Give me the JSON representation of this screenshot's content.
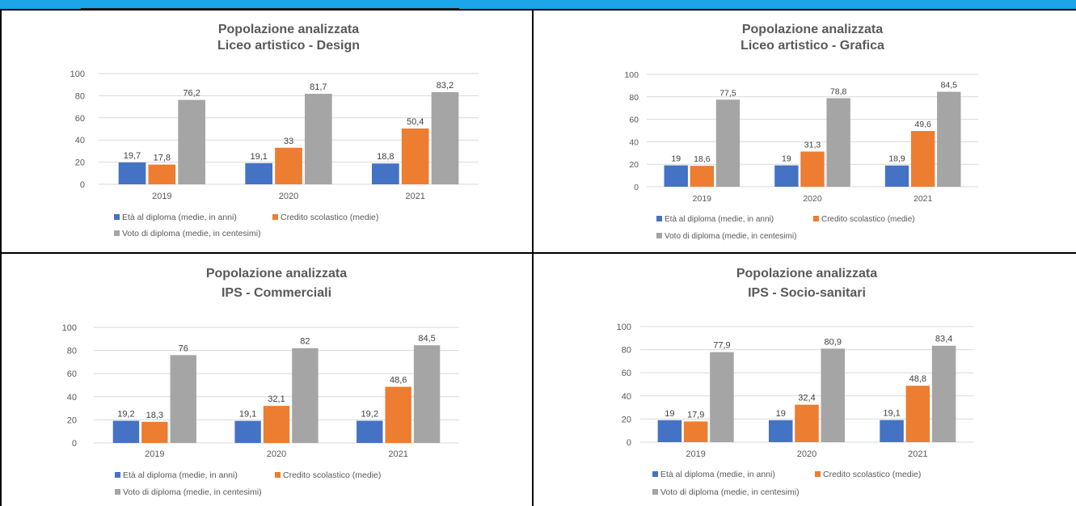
{
  "colors": {
    "series": [
      "#4472c4",
      "#ed7d31",
      "#a5a5a5"
    ],
    "top_band": "#1aa6e8"
  },
  "charts": [
    {
      "title": "Popolazione analizzata",
      "subtitle": "Liceo artistico - Design",
      "categories": [
        "2019",
        "2020",
        "2021"
      ],
      "series": [
        {
          "name": "Età al diploma (medie, in anni)",
          "values": [
            19.7,
            19.1,
            18.8
          ],
          "labels": [
            "19,7",
            "19,1",
            "18,8"
          ]
        },
        {
          "name": "Credito scolastico (medie)",
          "values": [
            17.8,
            33,
            50.4
          ],
          "labels": [
            "17,8",
            "33",
            "50,4"
          ]
        },
        {
          "name": "Voto di diploma (medie, in centesimi)",
          "values": [
            76.2,
            81.7,
            83.2
          ],
          "labels": [
            "76,2",
            "81,7",
            "83,2"
          ]
        }
      ],
      "yticks": [
        "0",
        "20",
        "40",
        "60",
        "80",
        "100"
      ]
    },
    {
      "title": "Popolazione analizzata",
      "subtitle": "Liceo artistico - Grafica",
      "categories": [
        "2019",
        "2020",
        "2021"
      ],
      "series": [
        {
          "name": "Età al diploma (medie, in anni)",
          "values": [
            19,
            19,
            18.9
          ],
          "labels": [
            "19",
            "19",
            "18,9"
          ]
        },
        {
          "name": "Credito scolastico (medie)",
          "values": [
            18.6,
            31.3,
            49.6
          ],
          "labels": [
            "18,6",
            "31,3",
            "49,6"
          ]
        },
        {
          "name": "Voto di diploma (medie, in centesimi)",
          "values": [
            77.5,
            78.8,
            84.5
          ],
          "labels": [
            "77,5",
            "78,8",
            "84,5"
          ]
        }
      ],
      "yticks": [
        "0",
        "20",
        "40",
        "60",
        "80",
        "100"
      ]
    },
    {
      "title": "Popolazione analizzata",
      "subtitle": "IPS - Commerciali",
      "categories": [
        "2019",
        "2020",
        "2021"
      ],
      "series": [
        {
          "name": "Età al diploma (medie, in anni)",
          "values": [
            19.2,
            19.1,
            19.2
          ],
          "labels": [
            "19,2",
            "19,1",
            "19,2"
          ]
        },
        {
          "name": "Credito scolastico (medie)",
          "values": [
            18.3,
            32.1,
            48.6
          ],
          "labels": [
            "18,3",
            "32,1",
            "48,6"
          ]
        },
        {
          "name": "Voto di diploma (medie, in centesimi)",
          "values": [
            76,
            82,
            84.5
          ],
          "labels": [
            "76",
            "82",
            "84,5"
          ]
        }
      ],
      "yticks": [
        "0",
        "20",
        "40",
        "60",
        "80",
        "100"
      ]
    },
    {
      "title": "Popolazione analizzata",
      "subtitle": "IPS - Socio-sanitari",
      "categories": [
        "2019",
        "2020",
        "2021"
      ],
      "series": [
        {
          "name": "Età al diploma (medie, in anni)",
          "values": [
            19,
            19,
            19.1
          ],
          "labels": [
            "19",
            "19",
            "19,1"
          ]
        },
        {
          "name": "Credito scolastico (medie)",
          "values": [
            17.9,
            32.4,
            48.8
          ],
          "labels": [
            "17,9",
            "32,4",
            "48,8"
          ]
        },
        {
          "name": "Voto di diploma (medie, in centesimi)",
          "values": [
            77.9,
            80.9,
            83.4
          ],
          "labels": [
            "77,9",
            "80,9",
            "83,4"
          ]
        }
      ],
      "yticks": [
        "0",
        "20",
        "40",
        "60",
        "80",
        "100"
      ]
    }
  ],
  "chart_data": [
    {
      "type": "bar",
      "title": "Popolazione analizzata",
      "subtitle": "Liceo artistico - Design",
      "categories": [
        "2019",
        "2020",
        "2021"
      ],
      "series": [
        {
          "name": "Età al diploma (medie, in anni)",
          "values": [
            19.7,
            19.1,
            18.8
          ]
        },
        {
          "name": "Credito scolastico (medie)",
          "values": [
            17.8,
            33,
            50.4
          ]
        },
        {
          "name": "Voto di diploma (medie, in centesimi)",
          "values": [
            76.2,
            81.7,
            83.2
          ]
        }
      ],
      "ylim": [
        0,
        100
      ],
      "grid": true,
      "legend": "bottom"
    },
    {
      "type": "bar",
      "title": "Popolazione analizzata",
      "subtitle": "Liceo artistico - Grafica",
      "categories": [
        "2019",
        "2020",
        "2021"
      ],
      "series": [
        {
          "name": "Età al diploma (medie, in anni)",
          "values": [
            19,
            19,
            18.9
          ]
        },
        {
          "name": "Credito scolastico (medie)",
          "values": [
            18.6,
            31.3,
            49.6
          ]
        },
        {
          "name": "Voto di diploma (medie, in centesimi)",
          "values": [
            77.5,
            78.8,
            84.5
          ]
        }
      ],
      "ylim": [
        0,
        100
      ],
      "grid": true,
      "legend": "bottom"
    },
    {
      "type": "bar",
      "title": "Popolazione analizzata",
      "subtitle": "IPS - Commerciali",
      "categories": [
        "2019",
        "2020",
        "2021"
      ],
      "series": [
        {
          "name": "Età al diploma (medie, in anni)",
          "values": [
            19.2,
            19.1,
            19.2
          ]
        },
        {
          "name": "Credito scolastico (medie)",
          "values": [
            18.3,
            32.1,
            48.6
          ]
        },
        {
          "name": "Voto di diploma (medie, in centesimi)",
          "values": [
            76,
            82,
            84.5
          ]
        }
      ],
      "ylim": [
        0,
        100
      ],
      "grid": true,
      "legend": "bottom"
    },
    {
      "type": "bar",
      "title": "Popolazione analizzata",
      "subtitle": "IPS - Socio-sanitari",
      "categories": [
        "2019",
        "2020",
        "2021"
      ],
      "series": [
        {
          "name": "Età al diploma (medie, in anni)",
          "values": [
            19,
            19,
            19.1
          ]
        },
        {
          "name": "Credito scolastico (medie)",
          "values": [
            17.9,
            32.4,
            48.8
          ]
        },
        {
          "name": "Voto di diploma (medie, in centesimi)",
          "values": [
            77.9,
            80.9,
            83.4
          ]
        }
      ],
      "ylim": [
        0,
        100
      ],
      "grid": true,
      "legend": "bottom"
    }
  ]
}
